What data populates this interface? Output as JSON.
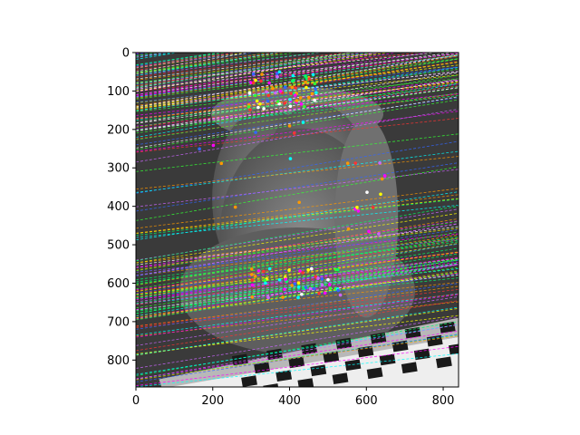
{
  "figure": {
    "background": "#ffffff"
  },
  "chart_data": {
    "type": "heatmap",
    "title": "",
    "xlabel": "",
    "ylabel": "",
    "image_content": "grayscale stereo image (stone cherub statue with checkerboard pattern at bottom) overlaid with colored epipolar lines and keypoint markers",
    "xlim": [
      0,
      840
    ],
    "ylim": [
      870,
      0
    ],
    "y_inverted": true,
    "xticks": [
      0,
      200,
      400,
      600,
      800
    ],
    "yticks": [
      0,
      100,
      200,
      300,
      400,
      500,
      600,
      700,
      800
    ],
    "xtick_labels": [
      "0",
      "200",
      "400",
      "600",
      "800"
    ],
    "ytick_labels": [
      "0",
      "100",
      "200",
      "300",
      "400",
      "500",
      "600",
      "700",
      "800"
    ],
    "grid": false,
    "overlay_colors": [
      "#ff00ff",
      "#00ffff",
      "#00ff66",
      "#ffff00",
      "#ff3333",
      "#3366ff",
      "#ff9900",
      "#33ff33",
      "#cc66ff",
      "#ffffff"
    ]
  }
}
